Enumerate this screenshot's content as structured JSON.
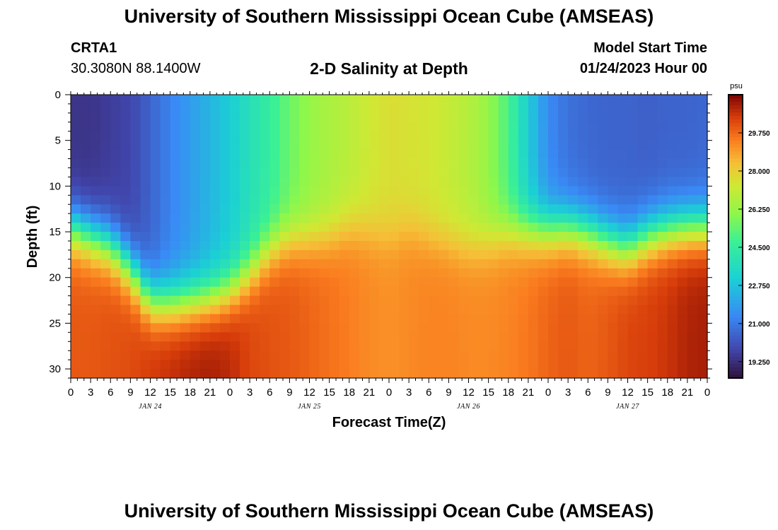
{
  "page": {
    "title_top": "University of Southern Mississippi Ocean Cube (AMSEAS)",
    "title_bottom": "University of Southern Mississippi Ocean Cube (AMSEAS)",
    "station_name": "CRTA1",
    "station_coords": "30.3080N  88.1400W",
    "plot_title": "2-D Salinity at Depth",
    "model_start_label": "Model Start Time",
    "model_start_value": "01/24/2023 Hour 00"
  },
  "colors": {
    "background": "#ffffff",
    "axis": "#000000"
  },
  "chart_data": {
    "type": "heatmap",
    "title": "2-D Salinity at Depth",
    "xlabel": "Forecast Time(Z)",
    "ylabel": "Depth (ft)",
    "x_tick_labels": [
      "0",
      "3",
      "6",
      "9",
      "12",
      "15",
      "18",
      "21",
      "0",
      "3",
      "6",
      "9",
      "12",
      "15",
      "18",
      "21",
      "0",
      "3",
      "6",
      "9",
      "12",
      "15",
      "18",
      "21",
      "0",
      "3",
      "6",
      "9",
      "12",
      "15",
      "18",
      "21",
      "0"
    ],
    "date_labels": [
      {
        "label": "JAN 24",
        "hour": 12
      },
      {
        "label": "JAN 25",
        "hour": 36
      },
      {
        "label": "JAN 26",
        "hour": 60
      },
      {
        "label": "JAN 27",
        "hour": 84
      }
    ],
    "xlim": [
      0,
      96
    ],
    "x_step_hours": 3,
    "ylim": [
      0,
      31
    ],
    "y_ticks": [
      0,
      5,
      10,
      15,
      20,
      25,
      30
    ],
    "colorbar": {
      "unit": "psu",
      "range": [
        18.5,
        31.5
      ],
      "ticks": [
        "29.750",
        "28.000",
        "26.250",
        "24.500",
        "22.750",
        "21.000",
        "19.250"
      ]
    },
    "halocline_depth_ft": [
      [
        0,
        14.5
      ],
      [
        3,
        15.5
      ],
      [
        6,
        16.5
      ],
      [
        9,
        19
      ],
      [
        12,
        22.5
      ],
      [
        15,
        22.8
      ],
      [
        18,
        22.6
      ],
      [
        21,
        22.3
      ],
      [
        24,
        21.5
      ],
      [
        27,
        19.5
      ],
      [
        30,
        17
      ],
      [
        33,
        15.8
      ],
      [
        36,
        15.8
      ],
      [
        39,
        15.5
      ],
      [
        42,
        14.5
      ],
      [
        45,
        14.8
      ],
      [
        48,
        15.5
      ],
      [
        51,
        14.5
      ],
      [
        54,
        15.5
      ],
      [
        57,
        16
      ],
      [
        60,
        16.5
      ],
      [
        63,
        16
      ],
      [
        66,
        15
      ],
      [
        69,
        14.8
      ],
      [
        72,
        14.8
      ],
      [
        75,
        14.5
      ],
      [
        78,
        15
      ],
      [
        81,
        16
      ],
      [
        84,
        16.8
      ],
      [
        87,
        15.5
      ],
      [
        90,
        14.8
      ],
      [
        93,
        14.5
      ],
      [
        96,
        14.5
      ]
    ],
    "surface_salinity_psu": [
      [
        0,
        19.4
      ],
      [
        3,
        19.4
      ],
      [
        6,
        19.6
      ],
      [
        9,
        19.8
      ],
      [
        12,
        20.5
      ],
      [
        15,
        21.2
      ],
      [
        18,
        21.8
      ],
      [
        21,
        22.4
      ],
      [
        24,
        23.0
      ],
      [
        27,
        23.8
      ],
      [
        30,
        24.5
      ],
      [
        33,
        25.5
      ],
      [
        36,
        26.2
      ],
      [
        39,
        26.6
      ],
      [
        42,
        26.9
      ],
      [
        45,
        27.3
      ],
      [
        48,
        27.6
      ],
      [
        51,
        27.5
      ],
      [
        54,
        27.4
      ],
      [
        57,
        27.1
      ],
      [
        60,
        26.8
      ],
      [
        63,
        26.2
      ],
      [
        66,
        25.0
      ],
      [
        69,
        23.0
      ],
      [
        72,
        21.4
      ],
      [
        75,
        20.8
      ],
      [
        78,
        20.6
      ],
      [
        81,
        20.5
      ],
      [
        84,
        20.5
      ],
      [
        87,
        20.4
      ],
      [
        90,
        20.5
      ],
      [
        93,
        20.5
      ],
      [
        96,
        20.6
      ]
    ],
    "deep_salinity_psu": [
      [
        0,
        30.0
      ],
      [
        3,
        30.0
      ],
      [
        6,
        30.1
      ],
      [
        9,
        30.2
      ],
      [
        12,
        30.5
      ],
      [
        15,
        30.7
      ],
      [
        18,
        30.9
      ],
      [
        21,
        31.0
      ],
      [
        24,
        30.8
      ],
      [
        27,
        30.3
      ],
      [
        30,
        30.1
      ],
      [
        33,
        30.0
      ],
      [
        36,
        29.8
      ],
      [
        39,
        29.6
      ],
      [
        42,
        29.4
      ],
      [
        45,
        29.2
      ],
      [
        48,
        29.1
      ],
      [
        51,
        29.2
      ],
      [
        54,
        29.3
      ],
      [
        57,
        29.3
      ],
      [
        60,
        29.2
      ],
      [
        63,
        29.2
      ],
      [
        66,
        29.3
      ],
      [
        69,
        29.5
      ],
      [
        72,
        29.8
      ],
      [
        75,
        30.0
      ],
      [
        78,
        29.8
      ],
      [
        81,
        30.0
      ],
      [
        84,
        30.3
      ],
      [
        87,
        30.4
      ],
      [
        90,
        30.6
      ],
      [
        93,
        30.9
      ],
      [
        96,
        31.0
      ]
    ]
  }
}
